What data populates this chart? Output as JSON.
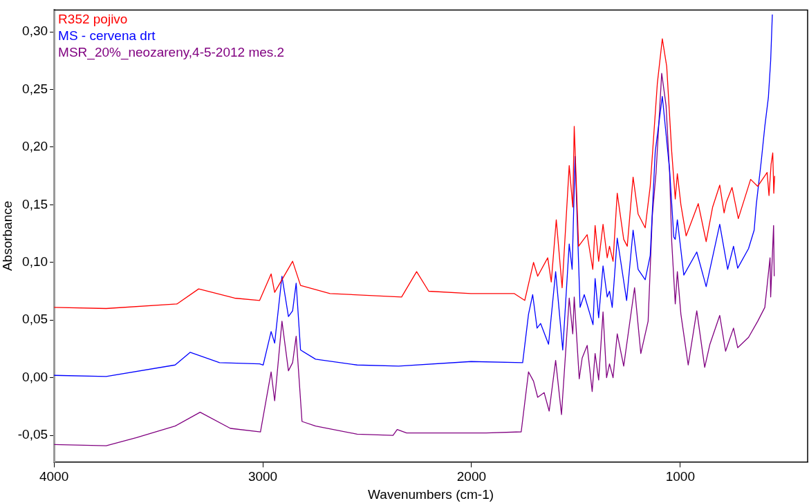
{
  "chart_data": {
    "type": "line",
    "xlabel": "Wavenumbers (cm-1)",
    "ylabel": "Absorbance",
    "legend": "top left",
    "grid": false,
    "marker": "none",
    "line_style": "solid",
    "xlim": [
      4000,
      390
    ],
    "xticks": [
      4000,
      3000,
      2000,
      1000
    ],
    "ylim": [
      -0.073,
      0.319
    ],
    "yticks": [
      {
        "value": -0.05,
        "label": "-0,05"
      },
      {
        "value": 0,
        "label": "0,00"
      },
      {
        "value": 0.05,
        "label": "0,05"
      },
      {
        "value": 0.1,
        "label": "0,10"
      },
      {
        "value": 0.15,
        "label": "0,15"
      },
      {
        "value": 0.2,
        "label": "0,20"
      },
      {
        "value": 0.25,
        "label": "0,25"
      },
      {
        "value": 0.3,
        "label": "0,30"
      }
    ],
    "series": [
      {
        "name": "R352 pojivo",
        "color": "#ff0000",
        "x": [
          4000,
          3750,
          3410,
          3307,
          3135,
          3015,
          2960,
          2943,
          2857,
          2819,
          2678,
          2335,
          2263,
          2205,
          2003,
          1796,
          1745,
          1703,
          1683,
          1635,
          1618,
          1594,
          1566,
          1532,
          1515,
          1508,
          1487,
          1446,
          1419,
          1408,
          1391,
          1370,
          1350,
          1339,
          1322,
          1302,
          1271,
          1254,
          1226,
          1202,
          1168,
          1144,
          1110,
          1086,
          1065,
          1041,
          1024,
          1014,
          997,
          972,
          914,
          876,
          845,
          811,
          790,
          780,
          752,
          722,
          663,
          629,
          584,
          575,
          565,
          557,
          552,
          548
        ],
        "values": [
          0.061,
          0.06,
          0.064,
          0.077,
          0.069,
          0.067,
          0.09,
          0.074,
          0.101,
          0.08,
          0.073,
          0.07,
          0.092,
          0.075,
          0.073,
          0.073,
          0.067,
          0.1,
          0.088,
          0.104,
          0.083,
          0.137,
          0.078,
          0.184,
          0.148,
          0.218,
          0.114,
          0.124,
          0.094,
          0.132,
          0.101,
          0.133,
          0.104,
          0.114,
          0.101,
          0.16,
          0.12,
          0.114,
          0.174,
          0.142,
          0.13,
          0.166,
          0.255,
          0.294,
          0.27,
          0.196,
          0.155,
          0.177,
          0.15,
          0.123,
          0.151,
          0.118,
          0.148,
          0.167,
          0.143,
          0.152,
          0.165,
          0.138,
          0.172,
          0.166,
          0.178,
          0.158,
          0.185,
          0.195,
          0.16,
          0.175
        ]
      },
      {
        "name": "MS - cervena drt",
        "color": "#0000ff",
        "x": [
          4000,
          3750,
          3420,
          3348,
          3207,
          3015,
          2998,
          2960,
          2943,
          2908,
          2877,
          2857,
          2840,
          2819,
          2747,
          2548,
          2349,
          2002,
          1755,
          1727,
          1707,
          1686,
          1669,
          1631,
          1597,
          1563,
          1532,
          1518,
          1504,
          1480,
          1460,
          1418,
          1408,
          1391,
          1370,
          1350,
          1339,
          1326,
          1302,
          1257,
          1226,
          1202,
          1168,
          1144,
          1120,
          1086,
          1051,
          1031,
          1024,
          1014,
          983,
          921,
          876,
          811,
          773,
          745,
          725,
          673,
          646,
          636,
          612,
          595,
          578,
          567,
          559
        ],
        "values": [
          0.002,
          0.001,
          0.011,
          0.022,
          0.013,
          0.012,
          0.011,
          0.04,
          0.03,
          0.088,
          0.053,
          0.058,
          0.082,
          0.024,
          0.016,
          0.011,
          0.01,
          0.014,
          0.013,
          0.055,
          0.072,
          0.043,
          0.047,
          0.029,
          0.092,
          0.024,
          0.116,
          0.094,
          0.192,
          0.061,
          0.072,
          0.046,
          0.086,
          0.052,
          0.097,
          0.07,
          0.075,
          0.061,
          0.121,
          0.067,
          0.128,
          0.094,
          0.085,
          0.106,
          0.196,
          0.244,
          0.18,
          0.122,
          0.12,
          0.137,
          0.089,
          0.109,
          0.079,
          0.133,
          0.094,
          0.114,
          0.095,
          0.112,
          0.128,
          0.15,
          0.188,
          0.218,
          0.243,
          0.275,
          0.315
        ]
      },
      {
        "name": "MSR_20%_neozareny,4-5-2012 mes.2",
        "color": "#800080",
        "x": [
          4000,
          3750,
          3605,
          3420,
          3300,
          3155,
          3011,
          2960,
          2943,
          2908,
          2877,
          2857,
          2840,
          2812,
          2747,
          2548,
          2376,
          2356,
          2311,
          1930,
          1762,
          1727,
          1703,
          1683,
          1652,
          1628,
          1597,
          1569,
          1532,
          1515,
          1508,
          1484,
          1470,
          1446,
          1422,
          1408,
          1391,
          1370,
          1353,
          1339,
          1322,
          1302,
          1271,
          1219,
          1189,
          1154,
          1134,
          1116,
          1089,
          1068,
          1051,
          1041,
          1024,
          1014,
          997,
          962,
          921,
          883,
          858,
          811,
          783,
          745,
          725,
          673,
          629,
          595,
          570,
          567,
          553,
          550
        ],
        "values": [
          -0.058,
          -0.059,
          -0.052,
          -0.042,
          -0.03,
          -0.044,
          -0.047,
          0.005,
          -0.02,
          0.049,
          0.006,
          0.013,
          0.036,
          -0.038,
          -0.042,
          -0.049,
          -0.05,
          -0.045,
          -0.048,
          -0.048,
          -0.047,
          0.005,
          -0.003,
          -0.017,
          -0.013,
          -0.029,
          0.015,
          -0.032,
          0.069,
          0.038,
          0.07,
          -0.001,
          0.017,
          0.028,
          -0.012,
          0.021,
          -0.002,
          0.057,
          0.0,
          0.012,
          0.0,
          0.038,
          0.01,
          0.078,
          0.021,
          0.049,
          0.14,
          0.178,
          0.264,
          0.236,
          0.177,
          0.118,
          0.064,
          0.092,
          0.055,
          0.011,
          0.058,
          0.009,
          0.029,
          0.054,
          0.023,
          0.043,
          0.026,
          0.035,
          0.049,
          0.061,
          0.104,
          0.07,
          0.132,
          0.088
        ]
      }
    ]
  }
}
